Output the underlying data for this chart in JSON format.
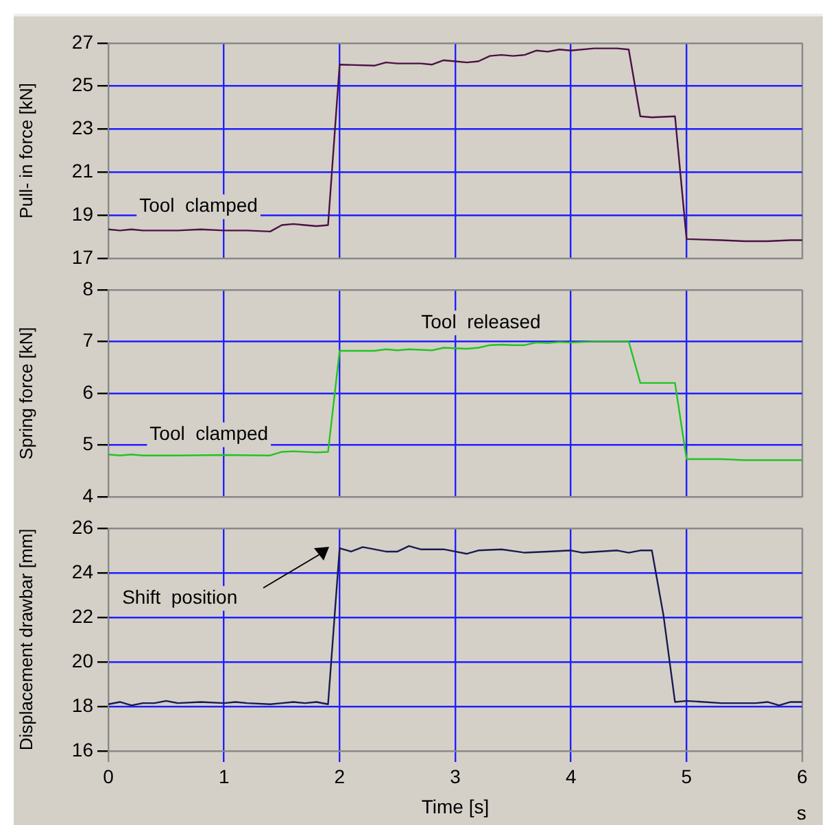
{
  "chart_data": [
    {
      "type": "line",
      "ylabel": "Pull- in force [kN]",
      "xlim": [
        0,
        6
      ],
      "xticks": [
        0,
        1,
        2,
        3,
        4,
        5,
        6
      ],
      "ylim": [
        17,
        27
      ],
      "yticks": [
        17,
        19,
        21,
        23,
        25,
        27
      ],
      "grid": true,
      "tick_labels": "y",
      "x": [
        0,
        0.1,
        0.2,
        0.3,
        0.4,
        0.6,
        0.8,
        1,
        1.2,
        1.4,
        1.5,
        1.6,
        1.7,
        1.8,
        1.9,
        2,
        2.3,
        2.4,
        2.5,
        2.7,
        2.8,
        2.9,
        3,
        3.1,
        3.2,
        3.3,
        3.4,
        3.5,
        3.6,
        3.7,
        3.8,
        3.9,
        4,
        4.2,
        4.4,
        4.5,
        4.6,
        4.7,
        4.9,
        5,
        5.3,
        5.5,
        5.7,
        5.9,
        6
      ],
      "series": [
        {
          "color": "#4b1044",
          "values": [
            18.35,
            18.3,
            18.35,
            18.3,
            18.3,
            18.3,
            18.35,
            18.3,
            18.3,
            18.25,
            18.55,
            18.6,
            18.55,
            18.5,
            18.55,
            26.0,
            25.95,
            26.1,
            26.05,
            26.05,
            26.0,
            26.2,
            26.15,
            26.1,
            26.15,
            26.4,
            26.45,
            26.4,
            26.45,
            26.65,
            26.6,
            26.7,
            26.65,
            26.75,
            26.75,
            26.7,
            23.6,
            23.55,
            23.6,
            17.9,
            17.85,
            17.8,
            17.8,
            17.85,
            17.85
          ]
        }
      ],
      "annotations": [
        "Tool  clamped"
      ]
    },
    {
      "type": "line",
      "ylabel": "Spring force [kN]",
      "xlim": [
        0,
        6
      ],
      "xticks": [
        0,
        1,
        2,
        3,
        4,
        5,
        6
      ],
      "ylim": [
        4,
        8
      ],
      "yticks": [
        4,
        5,
        6,
        7,
        8
      ],
      "grid": true,
      "tick_labels": "y",
      "x": [
        0,
        0.1,
        0.2,
        0.3,
        0.6,
        1,
        1.4,
        1.5,
        1.6,
        1.8,
        1.9,
        2,
        2.3,
        2.4,
        2.5,
        2.6,
        2.8,
        2.9,
        3,
        3.1,
        3.2,
        3.3,
        3.4,
        3.5,
        3.6,
        3.7,
        3.8,
        3.9,
        4,
        4.2,
        4.5,
        4.6,
        4.9,
        5,
        5.3,
        5.5,
        6
      ],
      "series": [
        {
          "color": "#22c422",
          "values": [
            4.82,
            4.8,
            4.82,
            4.8,
            4.8,
            4.81,
            4.8,
            4.87,
            4.88,
            4.86,
            4.87,
            6.82,
            6.82,
            6.85,
            6.83,
            6.85,
            6.83,
            6.88,
            6.87,
            6.86,
            6.88,
            6.93,
            6.94,
            6.93,
            6.93,
            6.98,
            6.97,
            6.99,
            6.98,
            7.0,
            7.0,
            6.2,
            6.2,
            4.73,
            4.73,
            4.71,
            4.71
          ]
        }
      ],
      "annotations": [
        "Tool  clamped",
        "Tool  released"
      ]
    },
    {
      "type": "line",
      "xlabel": "Time [s]",
      "ylabel": "Displacement drawbar [mm]",
      "xlim": [
        0,
        6
      ],
      "xticks": [
        0,
        1,
        2,
        3,
        4,
        5,
        6
      ],
      "ylim": [
        16,
        26
      ],
      "yticks": [
        16,
        18,
        20,
        22,
        24,
        26
      ],
      "grid": true,
      "x": [
        0,
        0.1,
        0.2,
        0.3,
        0.4,
        0.5,
        0.6,
        0.8,
        1,
        1.1,
        1.2,
        1.4,
        1.5,
        1.6,
        1.7,
        1.8,
        1.9,
        2,
        2.1,
        2.2,
        2.3,
        2.4,
        2.5,
        2.6,
        2.7,
        2.9,
        3,
        3.1,
        3.2,
        3.4,
        3.6,
        3.8,
        4,
        4.1,
        4.4,
        4.5,
        4.6,
        4.7,
        4.8,
        4.9,
        5,
        5.3,
        5.6,
        5.7,
        5.8,
        5.9,
        6
      ],
      "series": [
        {
          "color": "#1a1a50",
          "values": [
            18.1,
            18.2,
            18.05,
            18.15,
            18.15,
            18.25,
            18.15,
            18.2,
            18.15,
            18.2,
            18.15,
            18.1,
            18.15,
            18.2,
            18.15,
            18.2,
            18.1,
            25.1,
            24.95,
            25.15,
            25.05,
            24.95,
            24.95,
            25.2,
            25.05,
            25.05,
            24.95,
            24.85,
            25.0,
            25.05,
            24.9,
            24.95,
            25.0,
            24.9,
            25.0,
            24.9,
            25.0,
            25.0,
            22.1,
            18.2,
            18.25,
            18.15,
            18.15,
            18.2,
            18.05,
            18.2,
            18.2
          ]
        }
      ],
      "annotations": [
        "Shift  position",
        "s"
      ]
    }
  ]
}
